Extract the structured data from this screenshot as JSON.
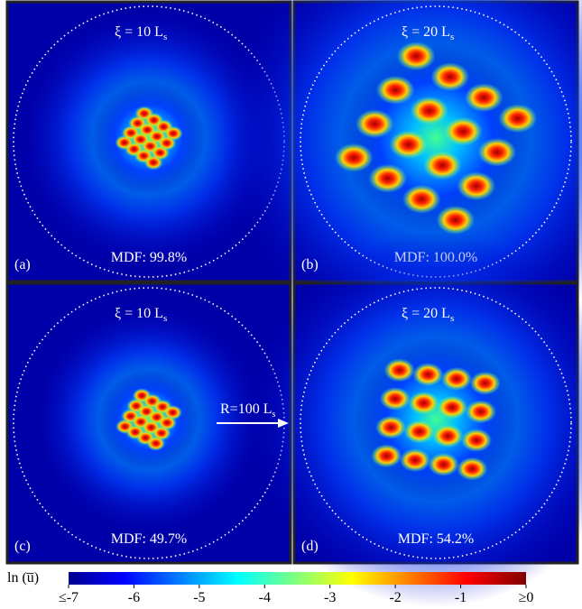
{
  "panels": [
    {
      "tag": "(a)",
      "xi": "ξ = 10 L",
      "xi_sub": "s",
      "mdf": "MDF: 99.8%"
    },
    {
      "tag": "(b)",
      "xi": "ξ = 20 L",
      "xi_sub": "s",
      "mdf": "MDF: 100.0%"
    },
    {
      "tag": "(c)",
      "xi": "ξ = 10 L",
      "xi_sub": "s",
      "mdf": "MDF: 49.7%"
    },
    {
      "tag": "(d)",
      "xi": "ξ = 20 L",
      "xi_sub": "s",
      "mdf": "MDF: 54.2%"
    }
  ],
  "annotation": {
    "text": "R=100 L",
    "sub": "s"
  },
  "colorbar": {
    "label": "ln (u̅)",
    "lim": [
      -7,
      0
    ],
    "ticks": [
      {
        "value": -7,
        "label": "≤-7"
      },
      -6,
      -5,
      -4,
      -3,
      -2,
      -1,
      {
        "value": 0,
        "label": "≥0"
      }
    ]
  }
}
